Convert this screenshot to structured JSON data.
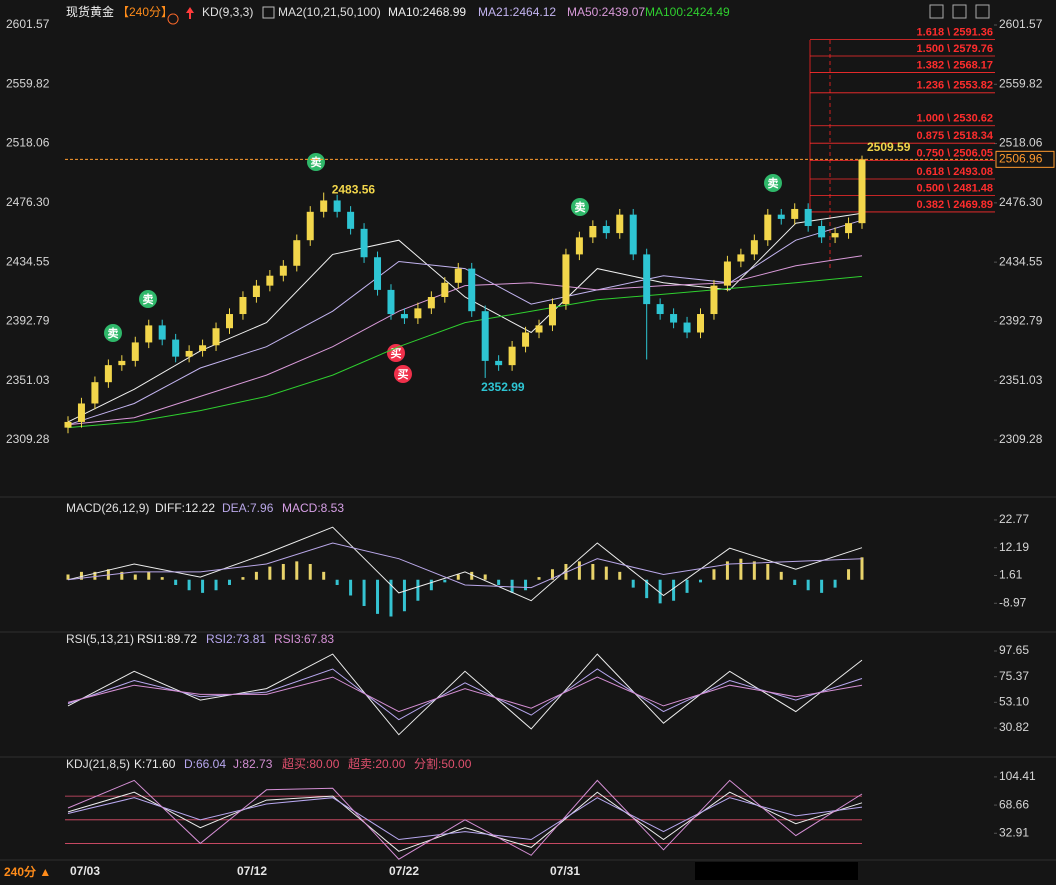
{
  "window": {
    "period_button": "240分 ▲",
    "x_labels": [
      "07/03",
      "07/12",
      "07/22",
      "07/31"
    ],
    "signal_labels": {
      "sell": "卖",
      "buy": "买"
    }
  },
  "chart_data": [
    {
      "type": "candlestick",
      "title": "现货黄金",
      "period": "【240分】",
      "indicator": "KD(9,3,3)",
      "ma_title": "MA2(10,21,50,100)",
      "up_color": "#f2d64b",
      "down_color": "#2ec5d3",
      "fib_color": "#ff2d2d",
      "current_price_color": "#ff9a2e",
      "open": [
        2318,
        2322,
        2335,
        2350,
        2362,
        2365,
        2378,
        2390,
        2380,
        2368,
        2372,
        2376,
        2388,
        2398,
        2410,
        2418,
        2425,
        2432,
        2450,
        2470,
        2478,
        2470,
        2458,
        2438,
        2415,
        2398,
        2395,
        2402,
        2410,
        2420,
        2430,
        2400,
        2365,
        2362,
        2375,
        2385,
        2390,
        2405,
        2440,
        2452,
        2460,
        2455,
        2468,
        2440,
        2405,
        2398,
        2392,
        2385,
        2398,
        2418,
        2435,
        2440,
        2450,
        2468,
        2465,
        2472,
        2460,
        2452,
        2455,
        2462
      ],
      "high": [
        2326,
        2339,
        2354,
        2366,
        2369,
        2382,
        2394,
        2394,
        2384,
        2376,
        2380,
        2392,
        2402,
        2414,
        2422,
        2429,
        2436,
        2454,
        2474,
        2483.56,
        2482,
        2474,
        2462,
        2442,
        2419,
        2402,
        2406,
        2414,
        2424,
        2434,
        2434,
        2404,
        2369,
        2379,
        2389,
        2394,
        2409,
        2444,
        2456,
        2464,
        2464,
        2472,
        2472,
        2444,
        2409,
        2402,
        2396,
        2402,
        2422,
        2439,
        2444,
        2454,
        2472,
        2472,
        2476,
        2476,
        2464,
        2459,
        2466,
        2509.59
      ],
      "low": [
        2314,
        2318,
        2331,
        2346,
        2358,
        2361,
        2374,
        2376,
        2364,
        2364,
        2368,
        2372,
        2384,
        2394,
        2406,
        2414,
        2421,
        2428,
        2446,
        2466,
        2466,
        2454,
        2434,
        2411,
        2394,
        2391,
        2391,
        2398,
        2406,
        2416,
        2396,
        2352.99,
        2358,
        2358,
        2371,
        2381,
        2386,
        2401,
        2436,
        2448,
        2451,
        2451,
        2436,
        2366,
        2394,
        2388,
        2381,
        2381,
        2394,
        2414,
        2431,
        2436,
        2446,
        2461,
        2461,
        2456,
        2448,
        2448,
        2451,
        2458
      ],
      "close": [
        2322,
        2335,
        2350,
        2362,
        2365,
        2378,
        2390,
        2380,
        2368,
        2372,
        2376,
        2388,
        2398,
        2410,
        2418,
        2425,
        2432,
        2450,
        2470,
        2478,
        2470,
        2458,
        2438,
        2415,
        2398,
        2395,
        2402,
        2410,
        2420,
        2430,
        2400,
        2365,
        2362,
        2375,
        2385,
        2390,
        2405,
        2440,
        2452,
        2460,
        2455,
        2468,
        2440,
        2405,
        2398,
        2392,
        2385,
        2398,
        2418,
        2435,
        2440,
        2450,
        2468,
        2465,
        2472,
        2460,
        2452,
        2455,
        2462,
        2506.96
      ],
      "series": [
        {
          "name": "MA10:2468.99",
          "color": "#f0f0f0",
          "values": [
            2322,
            2345,
            2372,
            2392,
            2440,
            2450,
            2410,
            2385,
            2430,
            2420,
            2415,
            2462,
            2468.99
          ]
        },
        {
          "name": "MA21:2464.12",
          "color": "#c3b4f0",
          "values": [
            2320,
            2335,
            2360,
            2375,
            2400,
            2435,
            2430,
            2405,
            2415,
            2425,
            2420,
            2450,
            2464.12
          ]
        },
        {
          "name": "MA50:2439.07",
          "color": "#d99ad9",
          "values": [
            2320,
            2325,
            2340,
            2355,
            2375,
            2400,
            2418,
            2420,
            2415,
            2418,
            2420,
            2432,
            2439.07
          ]
        },
        {
          "name": "MA100:2424.49",
          "color": "#2fcf2f",
          "values": [
            2318,
            2322,
            2330,
            2340,
            2355,
            2375,
            2392,
            2400,
            2408,
            2412,
            2416,
            2420,
            2424.49
          ]
        }
      ],
      "ylim": [
        2309.28,
        2601.57
      ],
      "yticks": [
        2601.57,
        2559.82,
        2518.06,
        {
          "value": 2476.3,
          "label": "2476.30"
        },
        2434.55,
        2392.79,
        2351.03,
        2309.28
      ],
      "fib_levels": [
        {
          "value": 2591.36,
          "label": "1.618 \\ 2591.36"
        },
        {
          "value": 2579.76,
          "label": "1.500 \\ 2579.76"
        },
        {
          "value": 2568.17,
          "label": "1.382 \\ 2568.17"
        },
        {
          "value": 2553.82,
          "label": "1.236 \\ 2553.82"
        },
        {
          "value": 2530.62,
          "label": "1.000 \\ 2530.62"
        },
        {
          "value": 2518.34,
          "label": "0.875 \\ 2518.34"
        },
        {
          "value": 2506.05,
          "label": "0.750 \\ 2506.05"
        },
        {
          "value": 2493.08,
          "label": "0.618 \\ 2493.08"
        },
        {
          "value": 2481.48,
          "label": "0.500 \\ 2481.48"
        },
        {
          "value": 2469.89,
          "label": "0.382 \\ 2469.89"
        }
      ]
    },
    {
      "type": "macd",
      "title": "MACD(26,12,9)",
      "histogram_name": "MACD:8.53",
      "up_color": "#e8d36a",
      "down_color": "#35c3d1",
      "histogram": [
        2,
        3,
        3,
        4,
        3,
        2,
        3,
        1,
        -2,
        -4,
        -5,
        -4,
        -2,
        1,
        3,
        5,
        6,
        7,
        6,
        3,
        -2,
        -6,
        -10,
        -13,
        -14,
        -12,
        -8,
        -4,
        -1,
        2,
        3,
        2,
        -2,
        -5,
        -4,
        1,
        4,
        6,
        7,
        6,
        5,
        3,
        -3,
        -7,
        -9,
        -8,
        -5,
        -1,
        4,
        7,
        8,
        7,
        6,
        3,
        -2,
        -4,
        -5,
        -3,
        4,
        8.53
      ],
      "series": [
        {
          "name": "DIFF:12.22",
          "color": "#ececec",
          "values": [
            0,
            6,
            1,
            10,
            20,
            -5,
            3,
            -8,
            14,
            -6,
            12,
            4,
            12.22
          ]
        },
        {
          "name": "DEA:7.96",
          "color": "#b9a7e8",
          "values": [
            0,
            3,
            3,
            6,
            14,
            8,
            -2,
            -3,
            8,
            2,
            6,
            7,
            7.96
          ]
        }
      ],
      "ylim": [
        -18,
        25.8
      ],
      "yticks": [
        22.77,
        12.19,
        1.61,
        -8.97
      ]
    },
    {
      "type": "line",
      "title": "RSI(5,13,21)",
      "series": [
        {
          "name": "RSI1:89.72",
          "color": "#ececec",
          "values": [
            50,
            80,
            55,
            65,
            95,
            25,
            80,
            30,
            95,
            35,
            80,
            45,
            89.72
          ]
        },
        {
          "name": "RSI2:73.81",
          "color": "#b8a8f0",
          "values": [
            52,
            72,
            58,
            62,
            82,
            38,
            70,
            42,
            82,
            45,
            72,
            55,
            73.81
          ]
        },
        {
          "name": "RSI3:67.83",
          "color": "#d48fd4",
          "values": [
            53,
            68,
            60,
            60,
            75,
            45,
            65,
            48,
            75,
            50,
            68,
            58,
            67.83
          ]
        }
      ],
      "ylim": [
        11.7,
        107.2
      ],
      "yticks": [
        97.65,
        75.37,
        {
          "value": 53.1,
          "label": "53.10"
        },
        30.82
      ]
    },
    {
      "type": "line",
      "title": "KDJ(21,8,5)",
      "level_color": "#e0506e",
      "series": [
        {
          "name": "K:71.60",
          "color": "#ececec",
          "values": [
            60,
            85,
            40,
            75,
            80,
            10,
            40,
            15,
            85,
            25,
            85,
            45,
            71.6
          ]
        },
        {
          "name": "D:66.04",
          "color": "#b8a8f0",
          "values": [
            58,
            78,
            50,
            70,
            78,
            25,
            35,
            25,
            78,
            35,
            78,
            55,
            66.04
          ]
        },
        {
          "name": "J:82.73",
          "color": "#d48fd4",
          "values": [
            65,
            100,
            20,
            88,
            90,
            0,
            50,
            5,
            100,
            12,
            100,
            30,
            82.73
          ]
        }
      ],
      "levels": [
        {
          "value": 80,
          "label": "超买:80.00"
        },
        {
          "value": 20,
          "label": "超卖:20.00"
        },
        {
          "value": 50,
          "label": "分割:50.00"
        }
      ],
      "ylim": [
        -1,
        119.5
      ],
      "yticks": [
        104.41,
        68.66,
        32.91
      ]
    }
  ]
}
